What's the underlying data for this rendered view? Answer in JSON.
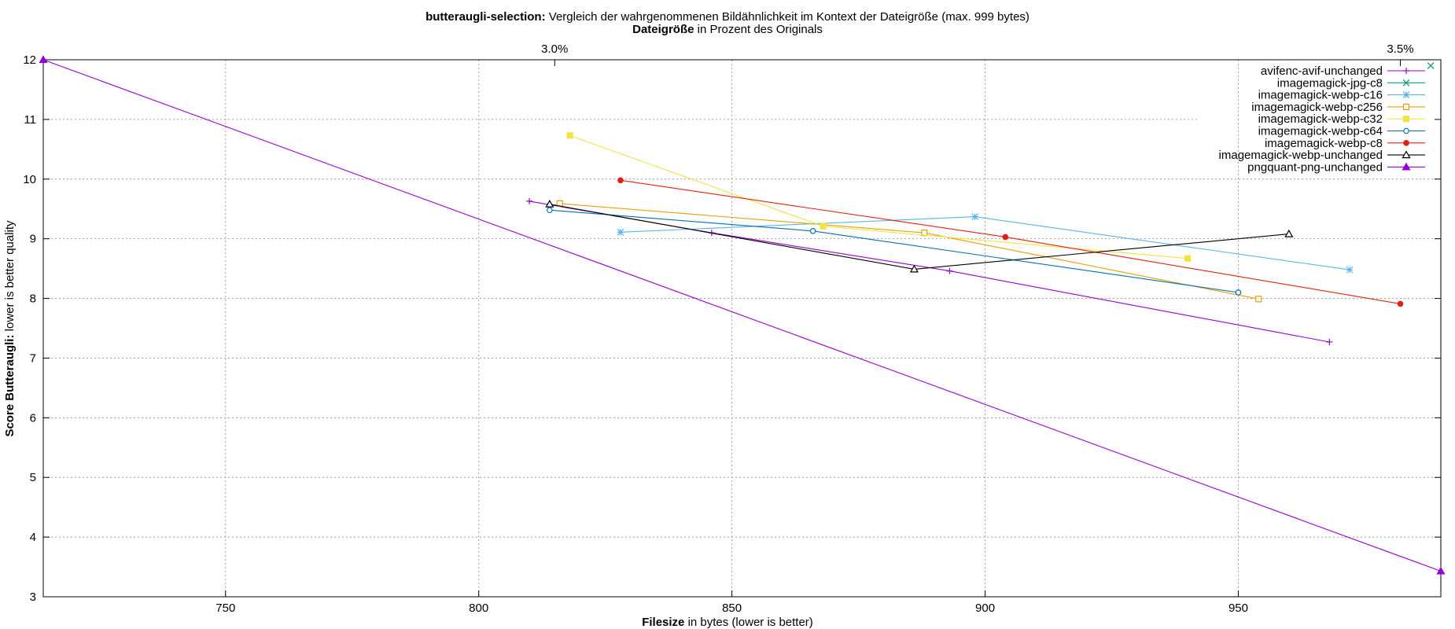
{
  "chart_data": {
    "type": "line",
    "title_bold": "butteraugli-selection:",
    "title_rest": " Vergleich der wahrgenommenen Bildähnlichkeit im Kontext der Dateigröße (max. 999 bytes)",
    "x2label_bold": "Dateigröße",
    "x2label_rest": " in Prozent des Originals",
    "xlabel_bold": "Filesize",
    "xlabel_rest": " in bytes (lower is better)",
    "ylabel_bold": "Score Butteraugli:",
    "ylabel_rest": " lower is better quality",
    "xlim": [
      714,
      990
    ],
    "ylim": [
      3,
      12
    ],
    "x_ticks": [
      750,
      800,
      850,
      900,
      950
    ],
    "y_ticks": [
      3,
      4,
      5,
      6,
      7,
      8,
      9,
      10,
      11,
      12
    ],
    "x2_ticks": [
      {
        "label": "3.0%",
        "at": 815
      },
      {
        "label": "3.5%",
        "at": 982
      }
    ],
    "grid": true,
    "legend_position": "top-right",
    "series": [
      {
        "name": "avifenc-avif-unchanged",
        "color": "#9400d3",
        "marker": "plus",
        "points": [
          [
            810,
            9.63
          ],
          [
            846,
            9.1
          ],
          [
            893,
            8.46
          ],
          [
            968,
            7.27
          ]
        ]
      },
      {
        "name": "imagemagick-jpg-c8",
        "color": "#009e73",
        "marker": "cross",
        "points": [
          [
            988,
            11.9
          ]
        ]
      },
      {
        "name": "imagemagick-webp-c16",
        "color": "#56b4e9",
        "marker": "star",
        "points": [
          [
            828,
            9.11
          ],
          [
            898,
            9.37
          ],
          [
            972,
            8.48
          ]
        ]
      },
      {
        "name": "imagemagick-webp-c256",
        "color": "#e69f00",
        "marker": "square",
        "points": [
          [
            816,
            9.59
          ],
          [
            888,
            9.1
          ],
          [
            954,
            7.99
          ]
        ]
      },
      {
        "name": "imagemagick-webp-c32",
        "color": "#f0e442",
        "marker": "filled-square",
        "points": [
          [
            818,
            10.73
          ],
          [
            868,
            9.21
          ],
          [
            940,
            8.67
          ]
        ]
      },
      {
        "name": "imagemagick-webp-c64",
        "color": "#0072b2",
        "marker": "circle",
        "points": [
          [
            814,
            9.48
          ],
          [
            866,
            9.13
          ],
          [
            950,
            8.1
          ]
        ]
      },
      {
        "name": "imagemagick-webp-c8",
        "color": "#e51e10",
        "marker": "filled-circle",
        "points": [
          [
            828,
            9.98
          ],
          [
            904,
            9.03
          ],
          [
            982,
            7.91
          ]
        ]
      },
      {
        "name": "imagemagick-webp-unchanged",
        "color": "#000000",
        "marker": "triangle",
        "points": [
          [
            814,
            9.58
          ],
          [
            886,
            8.49
          ],
          [
            960,
            9.08
          ]
        ]
      },
      {
        "name": "pngquant-png-unchanged",
        "color": "#9400d3",
        "marker": "filled-triangle",
        "points": [
          [
            714,
            12.0
          ],
          [
            990,
            3.43
          ]
        ]
      }
    ]
  }
}
